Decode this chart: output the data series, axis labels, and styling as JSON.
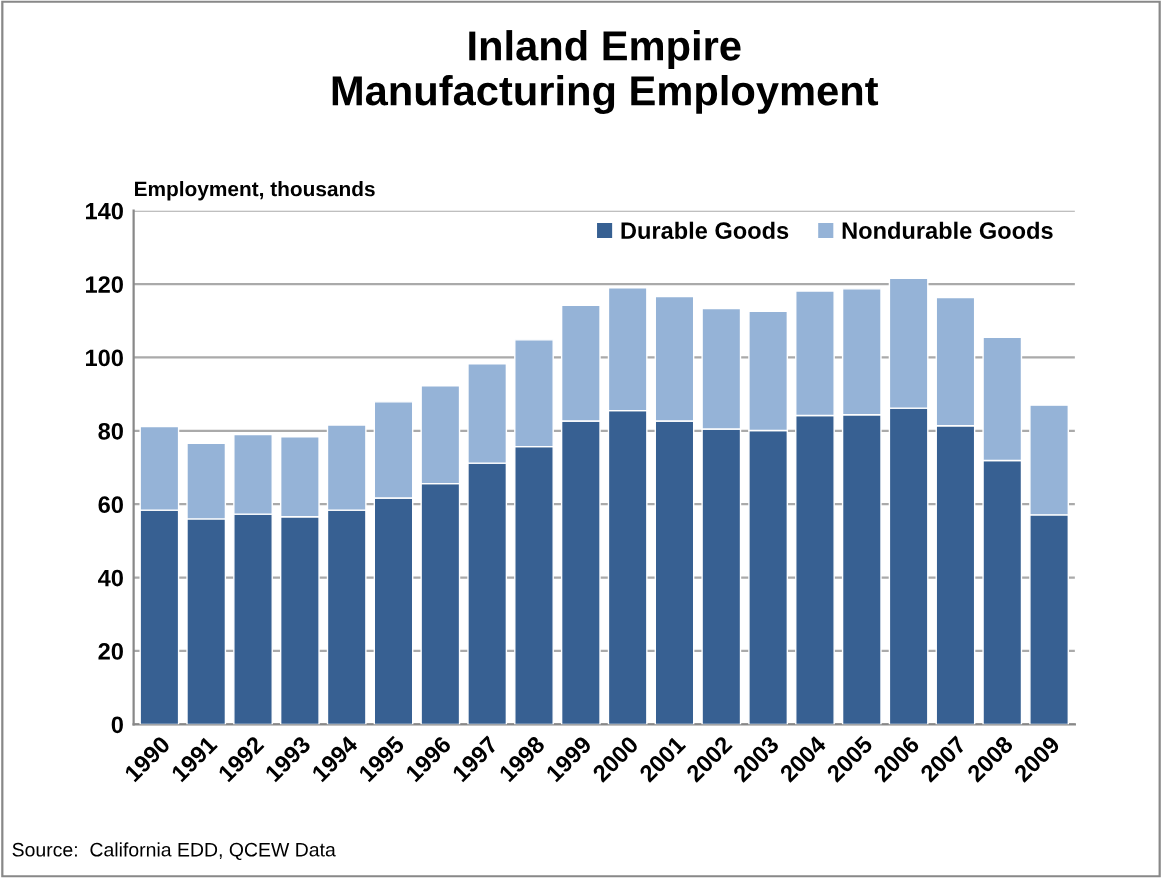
{
  "chart_data": {
    "type": "bar",
    "title": "Inland Empire\nManufacturing Employment",
    "ylabel": "Employment, thousands",
    "stacked": true,
    "grid": "y",
    "legend": "top right",
    "categories": [
      "1990",
      "1991",
      "1992",
      "1993",
      "1994",
      "1995",
      "1996",
      "1997",
      "1998",
      "1999",
      "2000",
      "2001",
      "2002",
      "2003",
      "2004",
      "2005",
      "2006",
      "2007",
      "2008",
      "2009"
    ],
    "series": [
      {
        "name": "Durable Goods",
        "color": "#376092",
        "values": [
          58.4,
          56.0,
          57.3,
          56.6,
          58.4,
          61.7,
          65.6,
          71.2,
          75.7,
          82.7,
          85.5,
          82.7,
          80.5,
          80.1,
          84.2,
          84.4,
          86.2,
          81.4,
          71.9,
          57.1
        ]
      },
      {
        "name": "Nondurable Goods",
        "color": "#95b3d7",
        "values": [
          22.8,
          20.6,
          21.7,
          21.8,
          23.2,
          26.2,
          26.7,
          27.1,
          29.1,
          31.5,
          33.5,
          33.9,
          32.8,
          32.5,
          33.9,
          34.3,
          35.4,
          34.9,
          33.6,
          29.9
        ]
      }
    ],
    "ylim": [
      0,
      140
    ],
    "yticks": [
      0,
      20,
      40,
      60,
      80,
      100,
      120,
      140
    ],
    "annotations": [
      "Source:  California EDD, QCEW Data"
    ]
  }
}
